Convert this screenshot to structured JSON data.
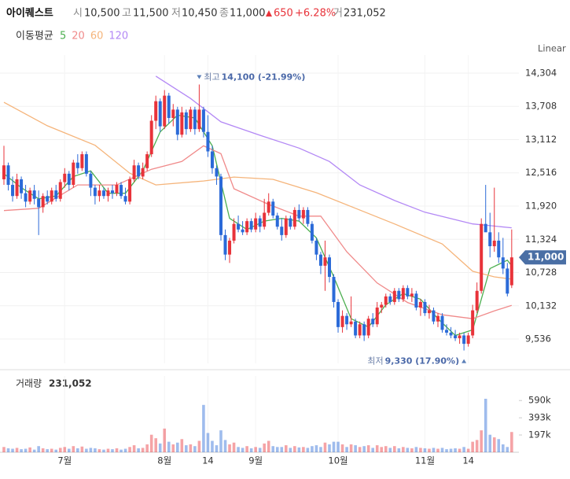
{
  "header": {
    "name": "아이퀘스트",
    "open_label": "시",
    "open": "10,500",
    "high_label": "고",
    "high": "11,500",
    "low_label": "저",
    "low": "10,450",
    "close_label": "종",
    "close": "11,000",
    "change": "650",
    "change_pct": "+6.28%",
    "volume_label": "거",
    "volume": "231,052"
  },
  "chart_data": {
    "type": "candlestick",
    "scale": "Linear",
    "up_color": "#e8333a",
    "down_color": "#2b6ad8",
    "ylim": [
      9099,
      14487
    ],
    "yticks": [
      {
        "value": 14304,
        "label": "14,304"
      },
      {
        "value": 13708,
        "label": "13,708"
      },
      {
        "value": 13112,
        "label": "13,112"
      },
      {
        "value": 12516,
        "label": "12,516"
      },
      {
        "value": 11920,
        "label": "11,920"
      },
      {
        "value": 11324,
        "label": "11,324"
      },
      {
        "value": 10728,
        "label": "10,728"
      },
      {
        "value": 10132,
        "label": "10,132"
      },
      {
        "value": 9536,
        "label": "9,536"
      }
    ],
    "xticks": [
      {
        "value": 14,
        "label": "7월"
      },
      {
        "value": 37,
        "label": "8월"
      },
      {
        "value": 47,
        "label": "14"
      },
      {
        "value": 58,
        "label": "9월"
      },
      {
        "value": 77,
        "label": "10월"
      },
      {
        "value": 97,
        "label": "11월"
      },
      {
        "value": 107,
        "label": "14"
      }
    ],
    "grid": true,
    "last_price": {
      "value": 11000,
      "label": "11,000"
    },
    "ohlc": [
      [
        12400,
        13000,
        12300,
        12650
      ],
      [
        12650,
        12700,
        12200,
        12300
      ],
      [
        12300,
        12450,
        12000,
        12100
      ],
      [
        12100,
        12500,
        12050,
        12400
      ],
      [
        12400,
        12450,
        12050,
        12150
      ],
      [
        12150,
        12300,
        11900,
        12000
      ],
      [
        12000,
        12250,
        11950,
        12200
      ],
      [
        12200,
        12300,
        11950,
        12050
      ],
      [
        12050,
        12200,
        11400,
        11900
      ],
      [
        11900,
        12150,
        11800,
        12100
      ],
      [
        12100,
        12200,
        11950,
        12000
      ],
      [
        12000,
        12250,
        11950,
        12200
      ],
      [
        12200,
        12300,
        12000,
        12050
      ],
      [
        12050,
        12400,
        12000,
        12350
      ],
      [
        12350,
        12600,
        12250,
        12500
      ],
      [
        12500,
        12550,
        12200,
        12300
      ],
      [
        12300,
        12750,
        12250,
        12700
      ],
      [
        12700,
        12850,
        12500,
        12600
      ],
      [
        12600,
        12900,
        12550,
        12850
      ],
      [
        12850,
        12900,
        12450,
        12500
      ],
      [
        12500,
        12550,
        12100,
        12250
      ],
      [
        12250,
        12300,
        11950,
        12100
      ],
      [
        12100,
        12300,
        12000,
        12200
      ],
      [
        12200,
        12250,
        12050,
        12100
      ],
      [
        12100,
        12250,
        12000,
        12200
      ],
      [
        12200,
        12300,
        12050,
        12150
      ],
      [
        12150,
        12350,
        12100,
        12300
      ],
      [
        12300,
        12350,
        12050,
        12100
      ],
      [
        12100,
        12250,
        11950,
        12000
      ],
      [
        12000,
        12450,
        11950,
        12400
      ],
      [
        12400,
        12750,
        12350,
        12650
      ],
      [
        12650,
        12700,
        12400,
        12450
      ],
      [
        12450,
        12700,
        12400,
        12600
      ],
      [
        12600,
        12900,
        12550,
        12850
      ],
      [
        12850,
        13550,
        12800,
        13450
      ],
      [
        13450,
        13900,
        13300,
        13800
      ],
      [
        13800,
        13850,
        13250,
        13350
      ],
      [
        13350,
        14000,
        13300,
        13900
      ],
      [
        13900,
        13950,
        13400,
        13500
      ],
      [
        13500,
        13750,
        13350,
        13650
      ],
      [
        13650,
        13700,
        13100,
        13200
      ],
      [
        13200,
        13700,
        13150,
        13600
      ],
      [
        13600,
        13650,
        13200,
        13300
      ],
      [
        13300,
        13700,
        13250,
        13650
      ],
      [
        13650,
        13700,
        13200,
        13300
      ],
      [
        13300,
        14100,
        13250,
        13650
      ],
      [
        13650,
        13700,
        13150,
        13250
      ],
      [
        13250,
        13550,
        12800,
        12900
      ],
      [
        12900,
        13000,
        12500,
        12600
      ],
      [
        12600,
        12650,
        12300,
        12450
      ],
      [
        12450,
        12500,
        11300,
        11400
      ],
      [
        11400,
        11500,
        10950,
        11050
      ],
      [
        11050,
        11350,
        10900,
        11300
      ],
      [
        11300,
        11700,
        11250,
        11600
      ],
      [
        11600,
        11750,
        11450,
        11500
      ],
      [
        11500,
        11650,
        11400,
        11450
      ],
      [
        11450,
        11700,
        11400,
        11650
      ],
      [
        11650,
        11700,
        11450,
        11500
      ],
      [
        11500,
        11800,
        11450,
        11700
      ],
      [
        11700,
        11750,
        11450,
        11550
      ],
      [
        11550,
        12050,
        11500,
        11800
      ],
      [
        11800,
        12150,
        11750,
        12000
      ],
      [
        12000,
        12050,
        11700,
        11750
      ],
      [
        11750,
        11800,
        11500,
        11550
      ],
      [
        11550,
        11700,
        11300,
        11400
      ],
      [
        11400,
        11750,
        11350,
        11700
      ],
      [
        11700,
        11750,
        11500,
        11550
      ],
      [
        11550,
        11900,
        11500,
        11850
      ],
      [
        11850,
        11950,
        11650,
        11700
      ],
      [
        11700,
        11900,
        11600,
        11850
      ],
      [
        11850,
        11900,
        11550,
        11600
      ],
      [
        11600,
        11650,
        11250,
        11300
      ],
      [
        11300,
        11350,
        10950,
        11050
      ],
      [
        11050,
        11100,
        10700,
        10850
      ],
      [
        10850,
        11300,
        10400,
        11000
      ],
      [
        11000,
        11050,
        10550,
        10650
      ],
      [
        10650,
        10700,
        10100,
        10200
      ],
      [
        10200,
        10250,
        9650,
        9750
      ],
      [
        9750,
        10050,
        9650,
        9950
      ],
      [
        9950,
        10000,
        9700,
        9800
      ],
      [
        9800,
        10300,
        9750,
        9850
      ],
      [
        9850,
        9900,
        9550,
        9600
      ],
      [
        9600,
        9850,
        9550,
        9800
      ],
      [
        9800,
        9850,
        9500,
        9600
      ],
      [
        9600,
        9950,
        9550,
        9900
      ],
      [
        9900,
        10000,
        9750,
        9800
      ],
      [
        9800,
        10200,
        9750,
        10100
      ],
      [
        10100,
        10200,
        10000,
        10150
      ],
      [
        10150,
        10350,
        10100,
        10300
      ],
      [
        10300,
        10350,
        10150,
        10200
      ],
      [
        10200,
        10450,
        10150,
        10400
      ],
      [
        10400,
        10450,
        10200,
        10250
      ],
      [
        10250,
        10500,
        10200,
        10450
      ],
      [
        10450,
        10500,
        10250,
        10300
      ],
      [
        10300,
        10450,
        10200,
        10350
      ],
      [
        10350,
        10400,
        10050,
        10100
      ],
      [
        10100,
        10250,
        9950,
        10200
      ],
      [
        10200,
        10250,
        9950,
        10000
      ],
      [
        10000,
        10150,
        9900,
        10050
      ],
      [
        10050,
        10100,
        9800,
        9850
      ],
      [
        9850,
        10000,
        9750,
        9950
      ],
      [
        9950,
        10000,
        9650,
        9700
      ],
      [
        9700,
        9800,
        9600,
        9650
      ],
      [
        9650,
        9750,
        9550,
        9600
      ],
      [
        9600,
        9700,
        9500,
        9550
      ],
      [
        9550,
        9650,
        9450,
        9600
      ],
      [
        9600,
        9650,
        9330,
        9450
      ],
      [
        9450,
        9650,
        9400,
        9600
      ],
      [
        9600,
        10150,
        9550,
        10050
      ],
      [
        10050,
        10550,
        10000,
        10400
      ],
      [
        10400,
        11700,
        10350,
        11600
      ],
      [
        11600,
        12300,
        11500,
        11450
      ],
      [
        11450,
        11800,
        11000,
        11200
      ],
      [
        11200,
        12250,
        11100,
        11300
      ],
      [
        11300,
        11450,
        10900,
        11000
      ],
      [
        11000,
        11350,
        10700,
        10800
      ],
      [
        10800,
        10900,
        10300,
        10350
      ],
      [
        10500,
        11500,
        10450,
        11000
      ]
    ],
    "ma_title": "이동평균",
    "moving_averages": [
      {
        "name": "5",
        "color": "#4caf50",
        "x": [
          0,
          4,
          8,
          12,
          16,
          20,
          24,
          28,
          32,
          36,
          40,
          44,
          48,
          52,
          56,
          60,
          64,
          68,
          72,
          76,
          80,
          84,
          88,
          92,
          96,
          100,
          104,
          108,
          112,
          116,
          117
        ],
        "values": [
          12500,
          12250,
          12050,
          12100,
          12450,
          12550,
          12150,
          12150,
          12550,
          13250,
          13550,
          13500,
          13000,
          11700,
          11500,
          11650,
          11700,
          11650,
          11350,
          10650,
          9900,
          9750,
          10150,
          10350,
          10250,
          9900,
          9600,
          9700,
          10800,
          10950,
          10850
        ]
      },
      {
        "name": "20",
        "color": "#f08a8a",
        "x": [
          0,
          8,
          17,
          26,
          34,
          41,
          46,
          50,
          53,
          61,
          68,
          73,
          79,
          86,
          93,
          101,
          108,
          113,
          117
        ],
        "values": [
          11840,
          11880,
          12300,
          12300,
          12580,
          12720,
          13000,
          12860,
          12230,
          11950,
          11740,
          11740,
          11100,
          10540,
          10190,
          9970,
          9900,
          10040,
          10140
        ]
      },
      {
        "name": "60",
        "color": "#f5b47a",
        "x": [
          0,
          10,
          21,
          29,
          35,
          46,
          53,
          62,
          72,
          81,
          90,
          101,
          108,
          113,
          117
        ],
        "values": [
          13780,
          13360,
          13010,
          12510,
          12300,
          12370,
          12440,
          12400,
          12160,
          11880,
          11600,
          11240,
          10750,
          10650,
          10610
        ]
      },
      {
        "name": "120",
        "color": "#b388f5",
        "x": [
          35,
          43,
          50,
          59,
          68,
          75,
          82,
          90,
          97,
          108,
          117
        ],
        "values": [
          14250,
          13850,
          13430,
          13190,
          12960,
          12720,
          12300,
          12020,
          11810,
          11600,
          11530
        ]
      }
    ],
    "annotations": [
      {
        "label": "최고",
        "value": 14100,
        "text": "14,100 (-21.99%)"
      },
      {
        "label": "최저",
        "value": 9330,
        "text": "9,330 (17.90%)"
      }
    ],
    "volume": {
      "label": "거래량",
      "current_label": "231,052",
      "ylim": [
        0,
        870000
      ],
      "yticks": [
        {
          "value": 590000,
          "label": "590k"
        },
        {
          "value": 393000,
          "label": "393k"
        },
        {
          "value": 197000,
          "label": "197k"
        }
      ],
      "values": [
        60000,
        45000,
        40000,
        50000,
        35000,
        40000,
        55000,
        30000,
        70000,
        45000,
        35000,
        40000,
        30000,
        50000,
        60000,
        40000,
        70000,
        45000,
        65000,
        40000,
        50000,
        45000,
        35000,
        30000,
        40000,
        35000,
        45000,
        30000,
        40000,
        60000,
        80000,
        45000,
        50000,
        90000,
        200000,
        160000,
        100000,
        270000,
        120000,
        90000,
        110000,
        150000,
        80000,
        90000,
        70000,
        130000,
        540000,
        220000,
        130000,
        80000,
        250000,
        140000,
        90000,
        110000,
        60000,
        50000,
        70000,
        45000,
        60000,
        50000,
        100000,
        130000,
        70000,
        60000,
        60000,
        80000,
        50000,
        70000,
        55000,
        60000,
        50000,
        70000,
        80000,
        60000,
        110000,
        90000,
        120000,
        120000,
        90000,
        60000,
        90000,
        80000,
        60000,
        70000,
        80000,
        50000,
        80000,
        60000,
        70000,
        50000,
        70000,
        45000,
        60000,
        50000,
        45000,
        60000,
        50000,
        45000,
        40000,
        50000,
        40000,
        50000,
        35000,
        40000,
        45000,
        40000,
        60000,
        40000,
        120000,
        140000,
        250000,
        610000,
        200000,
        170000,
        150000,
        90000,
        60000,
        231052
      ]
    }
  }
}
